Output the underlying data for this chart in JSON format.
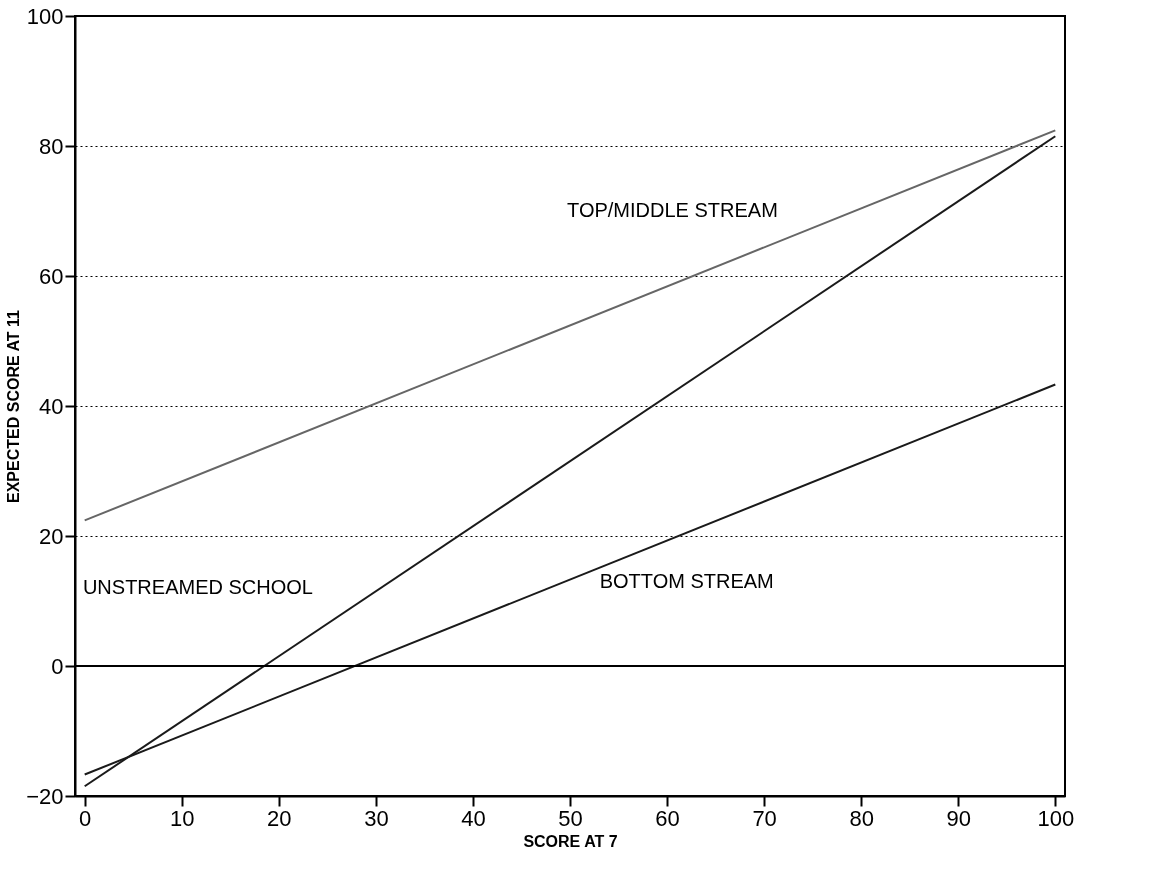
{
  "chart_data": {
    "type": "line",
    "xlabel": "SCORE AT 7",
    "ylabel": "EXPECTED SCORE AT 11",
    "x": [
      0,
      100
    ],
    "series": [
      {
        "color": "#666666",
        "values": [
          22.4,
          82.4
        ]
      },
      {
        "color": "#1a1a1a",
        "values": [
          -18.5,
          81.5
        ]
      },
      {
        "color": "#1a1a1a",
        "values": [
          -16.7,
          43.3
        ]
      }
    ],
    "xlim": [
      -1,
      101
    ],
    "xticks": [
      0,
      10,
      20,
      30,
      40,
      50,
      60,
      70,
      80,
      90,
      100
    ],
    "ylim": [
      -20,
      100
    ],
    "yticks": [
      -20,
      0,
      20,
      40,
      60,
      80,
      100
    ],
    "grid": "y",
    "marker": "none",
    "line_style": "solid",
    "ref_lines": [
      {
        "axis": "y",
        "value": 0,
        "color": "#000000",
        "line_style": "solid"
      }
    ],
    "annotations": [
      "TOP/MIDDLE STREAM",
      "UNSTREAMED SCHOOL",
      "BOTTOM STREAM"
    ]
  }
}
